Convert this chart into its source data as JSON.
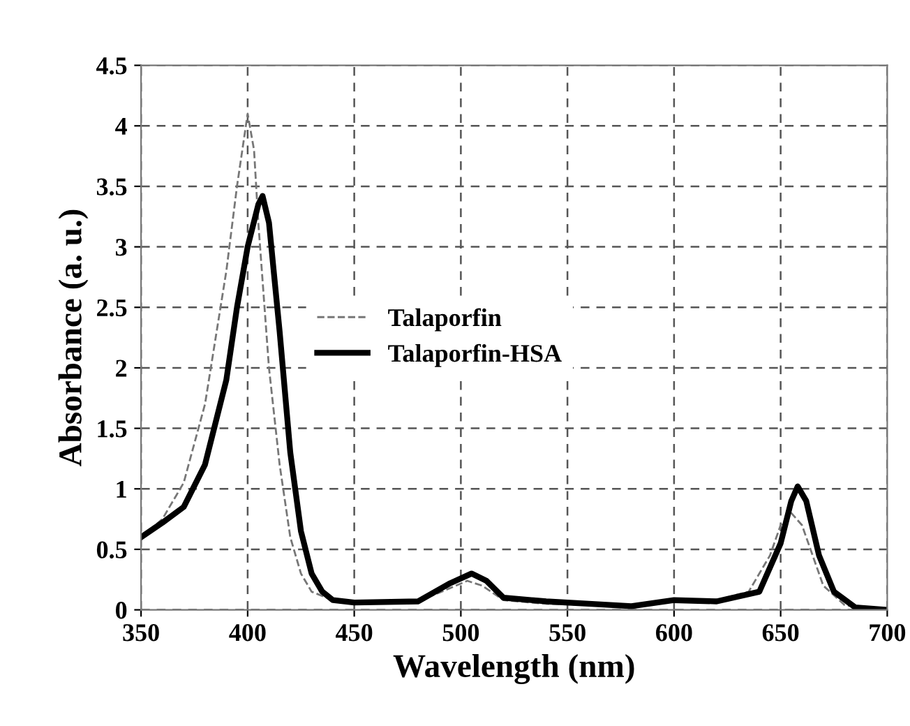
{
  "chart_data": {
    "type": "line",
    "xlabel": "Wavelength (nm)",
    "ylabel": "Absorbance (a. u.)",
    "xlim": [
      350,
      700
    ],
    "xticks": [
      350,
      400,
      450,
      500,
      550,
      600,
      650,
      700
    ],
    "ylim": [
      0,
      4.5
    ],
    "yticks": [
      0,
      0.5,
      1,
      1.5,
      2,
      2.5,
      3,
      3.5,
      4,
      4.5
    ],
    "grid": true,
    "legend": "center",
    "marker": "none",
    "series": [
      {
        "name": "Talaporfin",
        "color": "#777777",
        "line_style": "dashed",
        "x": [
          350,
          360,
          370,
          380,
          390,
          395,
          400,
          403,
          405,
          410,
          415,
          420,
          425,
          430,
          440,
          450,
          480,
          495,
          503,
          510,
          520,
          540,
          560,
          580,
          600,
          620,
          635,
          645,
          650,
          655,
          660,
          665,
          670,
          680,
          690,
          700
        ],
        "values": [
          0.6,
          0.75,
          1.05,
          1.7,
          2.8,
          3.5,
          4.1,
          3.8,
          3.2,
          2.0,
          1.2,
          0.6,
          0.3,
          0.15,
          0.08,
          0.06,
          0.07,
          0.18,
          0.24,
          0.2,
          0.08,
          0.05,
          0.04,
          0.03,
          0.08,
          0.08,
          0.15,
          0.45,
          0.7,
          0.8,
          0.7,
          0.45,
          0.2,
          0.04,
          0.01,
          0
        ]
      },
      {
        "name": "Talaporfin-HSA",
        "color": "#000000",
        "line_style": "solid",
        "x": [
          350,
          360,
          370,
          380,
          390,
          395,
          400,
          405,
          407,
          410,
          415,
          420,
          425,
          430,
          435,
          440,
          450,
          480,
          495,
          505,
          512,
          520,
          540,
          560,
          580,
          600,
          620,
          640,
          650,
          655,
          658,
          662,
          668,
          675,
          685,
          700
        ],
        "values": [
          0.6,
          0.72,
          0.85,
          1.2,
          1.9,
          2.5,
          3.0,
          3.35,
          3.42,
          3.2,
          2.3,
          1.3,
          0.65,
          0.3,
          0.15,
          0.08,
          0.06,
          0.07,
          0.22,
          0.3,
          0.24,
          0.1,
          0.07,
          0.05,
          0.03,
          0.08,
          0.07,
          0.15,
          0.55,
          0.9,
          1.02,
          0.9,
          0.45,
          0.15,
          0.02,
          0
        ]
      }
    ]
  }
}
